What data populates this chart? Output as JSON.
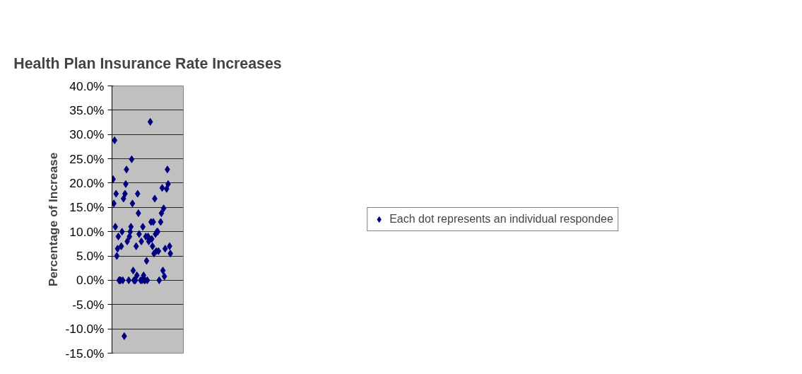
{
  "chart_data": {
    "type": "scatter",
    "title": "Health Plan Insurance Rate Increases",
    "ylabel": "Percentage of Increase",
    "categories": [
      null,
      null,
      null,
      null,
      null,
      null,
      null,
      null,
      null,
      null,
      null,
      null,
      null,
      null,
      null,
      null,
      null,
      null,
      null,
      null,
      null,
      null,
      null,
      null,
      null,
      null,
      null,
      null,
      null,
      null,
      null,
      null,
      null,
      null,
      null,
      null,
      null,
      null,
      null,
      null,
      null,
      null,
      null,
      null,
      null,
      null,
      null,
      null,
      null,
      null,
      null,
      null,
      null,
      null,
      null,
      null,
      null,
      null,
      null,
      null,
      null,
      null,
      null,
      null,
      null,
      null,
      null,
      null,
      null,
      null,
      null,
      null,
      null,
      null,
      null,
      null,
      null,
      null,
      null,
      null,
      null,
      null,
      null,
      null,
      null,
      null,
      null,
      null,
      null,
      null,
      null,
      null,
      null,
      null,
      null,
      null
    ],
    "series": [
      {
        "name": "Each dot represents an individual respondee",
        "color": "#000080",
        "values": [
          null,
          20.8,
          15.8,
          28.8,
          11.0,
          17.8,
          5.0,
          6.5,
          9.0,
          0,
          0,
          0,
          7.0,
          10.0,
          0,
          16.8,
          -11.5,
          17.8,
          19.8,
          22.8,
          8.0,
          null,
          0,
          9.0,
          10.0,
          11.0,
          24.9,
          15.8,
          2.0,
          0,
          0,
          0,
          7.0,
          1.0,
          17.8,
          13.8,
          9.5,
          null,
          0,
          8.0,
          0,
          11.0,
          1.0,
          0,
          0,
          9.0,
          4.0,
          0,
          9.0,
          8.0,
          8.5,
          32.6,
          12.0,
          8.5,
          7.0,
          12.0,
          5.5,
          16.8,
          9.5,
          6.0,
          10.0,
          10.0,
          6.0,
          0,
          null,
          12.0,
          13.8,
          19.0,
          2.0,
          14.8,
          0.8,
          6.5,
          null,
          18.8,
          22.8,
          19.8,
          null,
          7.0,
          5.5,
          null,
          null,
          null,
          null,
          null,
          null,
          null,
          null,
          null,
          null,
          null,
          null,
          null,
          null,
          null,
          null,
          null
        ]
      }
    ],
    "ylim": [
      -15,
      40
    ],
    "yticks": [
      {
        "value": -15,
        "label": "-15.0%"
      },
      {
        "value": -10,
        "label": "-10.0%"
      },
      {
        "value": -5,
        "label": "-5.0%"
      },
      {
        "value": 0,
        "label": "0.0%"
      },
      {
        "value": 5,
        "label": "5.0%"
      },
      {
        "value": 10,
        "label": "10.0%"
      },
      {
        "value": 15,
        "label": "15.0%"
      },
      {
        "value": 20,
        "label": "20.0%"
      },
      {
        "value": 25,
        "label": "25.0%"
      },
      {
        "value": 30,
        "label": "30.0%"
      },
      {
        "value": 35,
        "label": "35.0%"
      },
      {
        "value": 40,
        "label": "40.0%"
      }
    ],
    "grid": "y",
    "legend": "right",
    "marker": "diamond",
    "tick_labels": "y"
  }
}
